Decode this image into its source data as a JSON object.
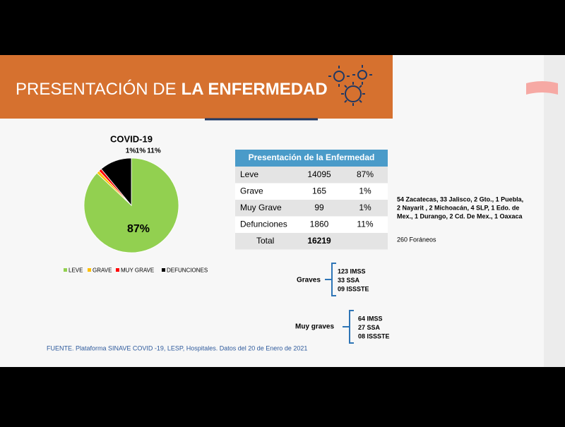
{
  "header": {
    "title_regular": "PRESENTACIÓN DE",
    "title_bold": "LA ENFERMEDAD"
  },
  "chart_data": {
    "type": "pie",
    "title": "COVID-19",
    "categories": [
      "LEVE",
      "GRAVE",
      "MUY GRAVE",
      "DEFUNCIONES"
    ],
    "values": [
      87,
      1,
      1,
      11
    ],
    "value_labels": [
      "87%",
      "1%",
      "1%",
      "11%"
    ],
    "colors": [
      "#92d050",
      "#ffc000",
      "#ff0000",
      "#000000"
    ],
    "direction": "clockwise",
    "legend": "bottom"
  },
  "table": {
    "title": "Presentación de la Enfermedad",
    "rows": [
      [
        "Leve",
        14095,
        "87%"
      ],
      [
        "Grave",
        165,
        "1%"
      ],
      [
        "Muy Grave",
        99,
        "1%"
      ],
      [
        "Defunciones",
        1860,
        "11%"
      ],
      [
        "Total",
        16219
      ]
    ]
  },
  "notes": {
    "states": [
      "54 Zacatecas, 33 Jalisco, 2 Gto., 1 Puebla,",
      "2 Nayarit , 2 Michoacán, 4 SLP, 1 Edo. de",
      "Mex., 1 Durango, 2 Cd. De Mex., 1 Oaxaca"
    ],
    "foraneos": "260 Foráneos"
  },
  "groups": [
    {
      "label": "Graves",
      "items": [
        "123 IMSS",
        "33 SSA",
        "09 ISSSTE"
      ]
    },
    {
      "label": "Muy graves",
      "items": [
        "64 IMSS",
        "27 SSA",
        "08 ISSSTE"
      ]
    }
  ],
  "footer": "FUENTE. Plataforma SINAVE COVID -19, LESP, Hospitales. Datos del 20 de Enero de 2021"
}
